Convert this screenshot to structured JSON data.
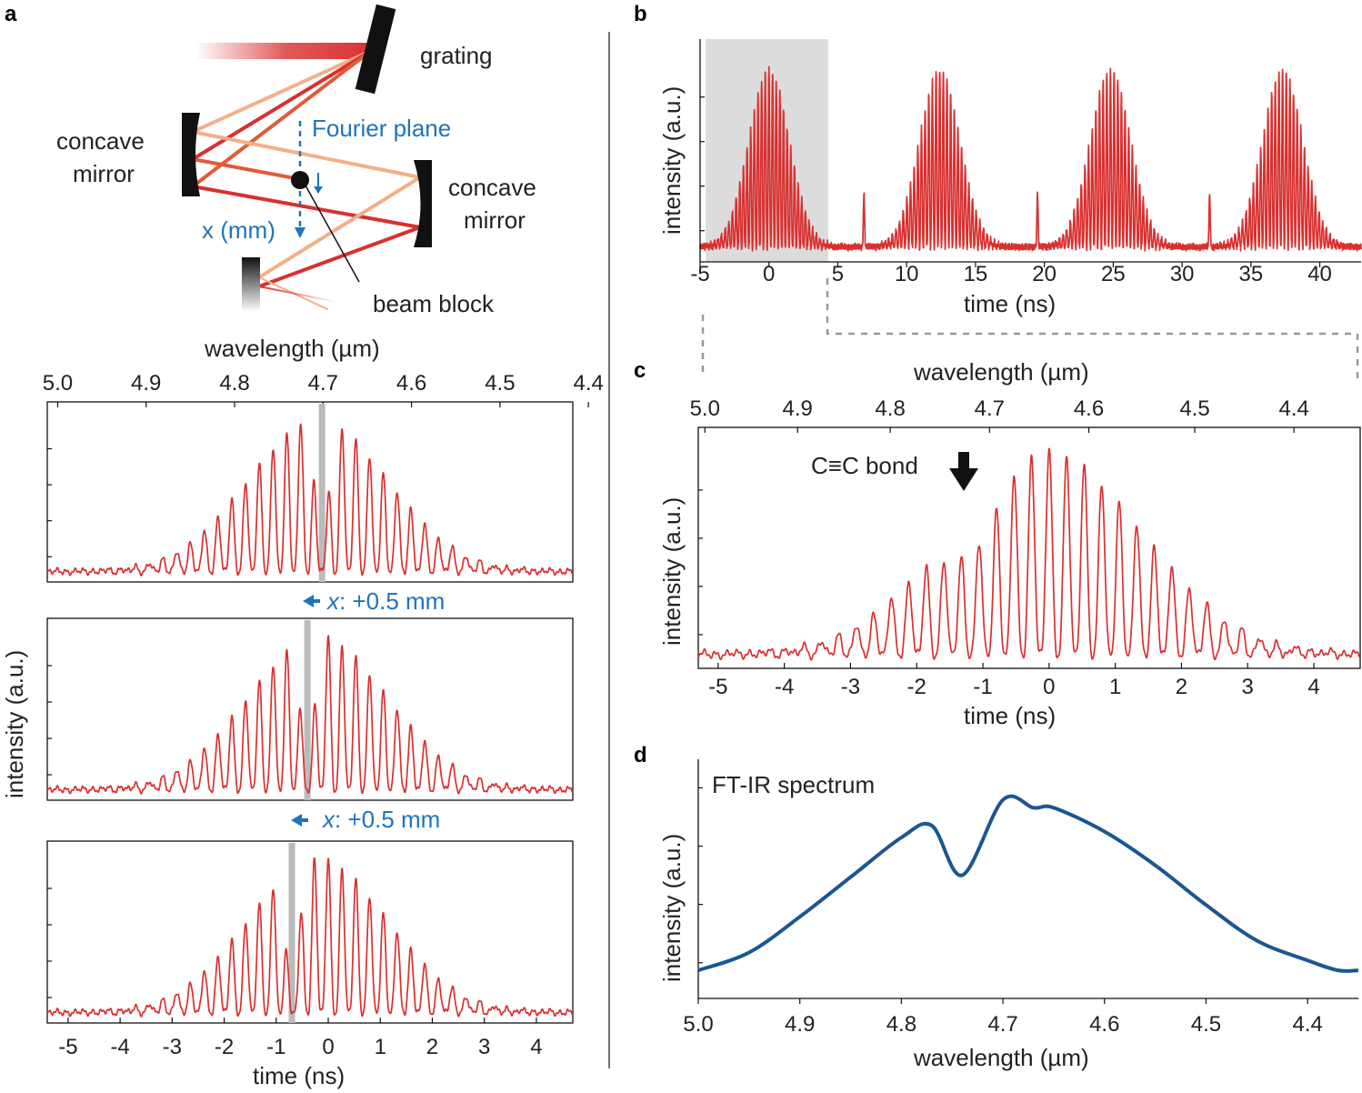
{
  "panels": {
    "a": "a",
    "b": "b",
    "c": "c",
    "d": "d"
  },
  "setup": {
    "grating": "grating",
    "concave_mirror_left": [
      "concave",
      "mirror"
    ],
    "concave_mirror_right": [
      "concave",
      "mirror"
    ],
    "fourier_plane": "Fourier plane",
    "x_mm": "x (mm)",
    "beam_block": "beam block"
  },
  "shift_labels": [
    {
      "var": "x",
      "text": ": +0.5 mm"
    },
    {
      "var": "x",
      "text": ": +0.5 mm"
    }
  ],
  "annotation": "C≡C bond",
  "ftir_label": "FT-IR spectrum",
  "colors": {
    "signal": "#d93030",
    "ftir": "#1a5792",
    "accent": "#1e73be",
    "block_line": "#bbbbbb",
    "highlight": "#dcdcdc"
  },
  "chart_data": [
    {
      "id": "a-top",
      "type": "line",
      "title": "",
      "xlabel": "time (ns)",
      "ylabel": "intensity (a.u.)",
      "top_xlabel": "wavelength (µm)",
      "xlim": [
        -5.4,
        4.7
      ],
      "ylim": [
        0,
        1
      ],
      "top_ticks": [
        "5.0",
        "4.9",
        "4.8",
        "4.7",
        "4.6",
        "4.5",
        "4.4"
      ],
      "top_tick_pos": [
        -5.2,
        -3.5,
        -1.8,
        -0.1,
        1.6,
        3.3,
        5.0
      ],
      "blocked_time_ns": -0.12,
      "envelope": {
        "center": -0.2,
        "width": 1.9,
        "peak": 0.92
      },
      "fringe_period_ns": 0.265,
      "fringe_count": 34
    },
    {
      "id": "a-mid",
      "type": "line",
      "xlim": [
        -5.4,
        4.7
      ],
      "ylim": [
        0,
        1
      ],
      "blocked_time_ns": -0.4,
      "envelope": {
        "center": -0.2,
        "width": 1.9,
        "peak": 0.92
      },
      "fringe_period_ns": 0.265,
      "fringe_count": 34
    },
    {
      "id": "a-bot",
      "type": "line",
      "xlim": [
        -5.4,
        4.7
      ],
      "ylim": [
        0,
        1
      ],
      "blocked_time_ns": -0.7,
      "envelope": {
        "center": -0.2,
        "width": 1.9,
        "peak": 0.92
      },
      "fringe_period_ns": 0.265,
      "fringe_count": 34,
      "x_ticks": [
        -5,
        -4,
        -3,
        -2,
        -1,
        0,
        1,
        2,
        3,
        4
      ]
    },
    {
      "id": "b",
      "type": "line",
      "xlabel": "time (ns)",
      "ylabel": "intensity (a.u.)",
      "xlim": [
        -5,
        43
      ],
      "ylim": [
        0,
        1
      ],
      "x_ticks": [
        -5,
        0,
        5,
        10,
        15,
        20,
        25,
        30,
        35,
        40
      ],
      "highlight_range_ns": [
        -4.6,
        4.3
      ],
      "pulse_centers_ns": [
        0,
        12.4,
        24.8,
        37.3
      ],
      "spike_times_ns": [
        6.9,
        19.5,
        32.0
      ]
    },
    {
      "id": "c",
      "type": "line",
      "xlabel": "time (ns)",
      "ylabel": "intensity (a.u.)",
      "top_xlabel": "wavelength (µm)",
      "xlim": [
        -5.3,
        4.7
      ],
      "ylim": [
        0,
        1
      ],
      "x_ticks": [
        -5,
        -4,
        -3,
        -2,
        -1,
        0,
        1,
        2,
        3,
        4
      ],
      "top_ticks": [
        "5.0",
        "4.9",
        "4.8",
        "4.7",
        "4.6",
        "4.5",
        "4.4"
      ],
      "top_tick_pos": [
        -5.2,
        -3.8,
        -2.4,
        -0.9,
        0.6,
        2.2,
        3.7
      ],
      "dip_time_ns": -1.2,
      "fringe_period_ns": 0.265,
      "fringe_count": 38
    },
    {
      "id": "d",
      "type": "line",
      "title": "FT-IR spectrum",
      "xlabel": "wavelength (µm)",
      "ylabel": "intensity (a.u.)",
      "xlim": [
        5.0,
        4.35
      ],
      "ylim": [
        0,
        1
      ],
      "x_ticks": [
        "5.0",
        "4.9",
        "4.8",
        "4.7",
        "4.6",
        "4.5",
        "4.4"
      ],
      "x_tick_vals": [
        5.0,
        4.9,
        4.8,
        4.7,
        4.6,
        4.5,
        4.4
      ],
      "x": [
        5.0,
        4.95,
        4.9,
        4.85,
        4.8,
        4.77,
        4.74,
        4.7,
        4.67,
        4.65,
        4.6,
        4.55,
        4.5,
        4.45,
        4.4,
        4.37,
        4.35
      ],
      "y": [
        0.05,
        0.14,
        0.32,
        0.52,
        0.72,
        0.78,
        0.53,
        0.91,
        0.87,
        0.87,
        0.75,
        0.58,
        0.38,
        0.2,
        0.1,
        0.05,
        0.05
      ]
    }
  ]
}
